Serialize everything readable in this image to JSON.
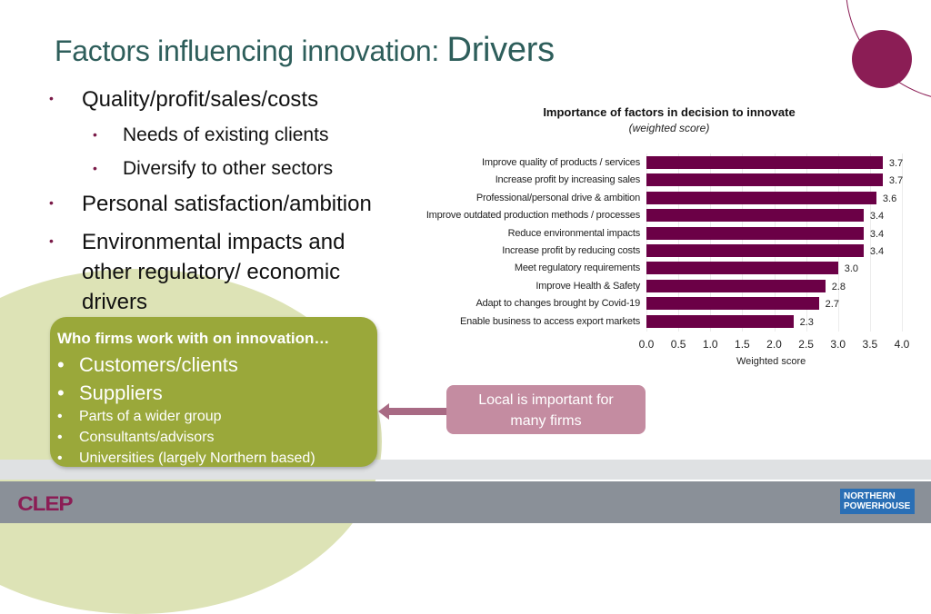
{
  "title": {
    "part1": "Factors influencing innovation: ",
    "part2": "Drivers"
  },
  "bullets": [
    {
      "level": 1,
      "text": "Quality/profit/sales/costs"
    },
    {
      "level": 2,
      "text": "Needs of existing clients"
    },
    {
      "level": 2,
      "text": "Diversify to other sectors"
    },
    {
      "level": 1,
      "text": "Personal satisfaction/ambition"
    },
    {
      "level": 1,
      "text": "Environmental impacts and"
    },
    {
      "level": 1,
      "text": "other regulatory/ economic"
    },
    {
      "level": 1,
      "text": "drivers"
    }
  ],
  "bullet_glyph": "•",
  "collab_box": {
    "heading": "Who firms work with on innovation…",
    "items": [
      "Customers/clients",
      "Suppliers",
      "Parts of a wider group",
      "Consultants/advisors",
      "Universities (largely Northern based)"
    ]
  },
  "callout": {
    "line1": "Local is important for",
    "line2": "many firms"
  },
  "colors": {
    "bar": "#6b0046",
    "title": "#2e5e5b",
    "accent": "#8b1d55",
    "green_box": "#9aa83a",
    "callout": "#c48ca1"
  },
  "footer": {
    "left_logo": "CLEP",
    "right_logo_line1": "NORTHERN",
    "right_logo_line2": "POWERHOUSE"
  },
  "chart_data": {
    "type": "bar",
    "orientation": "horizontal",
    "title": "Importance of factors in decision to innovate",
    "subtitle": "(weighted score)",
    "xlabel": "Weighted score",
    "ylabel": "",
    "categories": [
      "Improve quality of products / services",
      "Increase profit by increasing sales",
      "Professional/personal drive & ambition",
      "Improve outdated production methods / processes",
      "Reduce environmental impacts",
      "Increase profit by reducing costs",
      "Meet regulatory requirements",
      "Improve Health & Safety",
      "Adapt to changes brought by Covid-19",
      "Enable business to access export markets"
    ],
    "values": [
      3.7,
      3.7,
      3.6,
      3.4,
      3.4,
      3.4,
      3.0,
      2.8,
      2.7,
      2.3
    ],
    "value_labels": [
      "3.7",
      "3.7",
      "3.6",
      "3.4",
      "3.4",
      "3.4",
      "3.0",
      "2.8",
      "2.7",
      "2.3"
    ],
    "xlim": [
      0,
      4.0
    ],
    "xticks": [
      "0.0",
      "0.5",
      "1.0",
      "1.5",
      "2.0",
      "2.5",
      "3.0",
      "3.5",
      "4.0"
    ],
    "grid": true,
    "legend": "none"
  }
}
